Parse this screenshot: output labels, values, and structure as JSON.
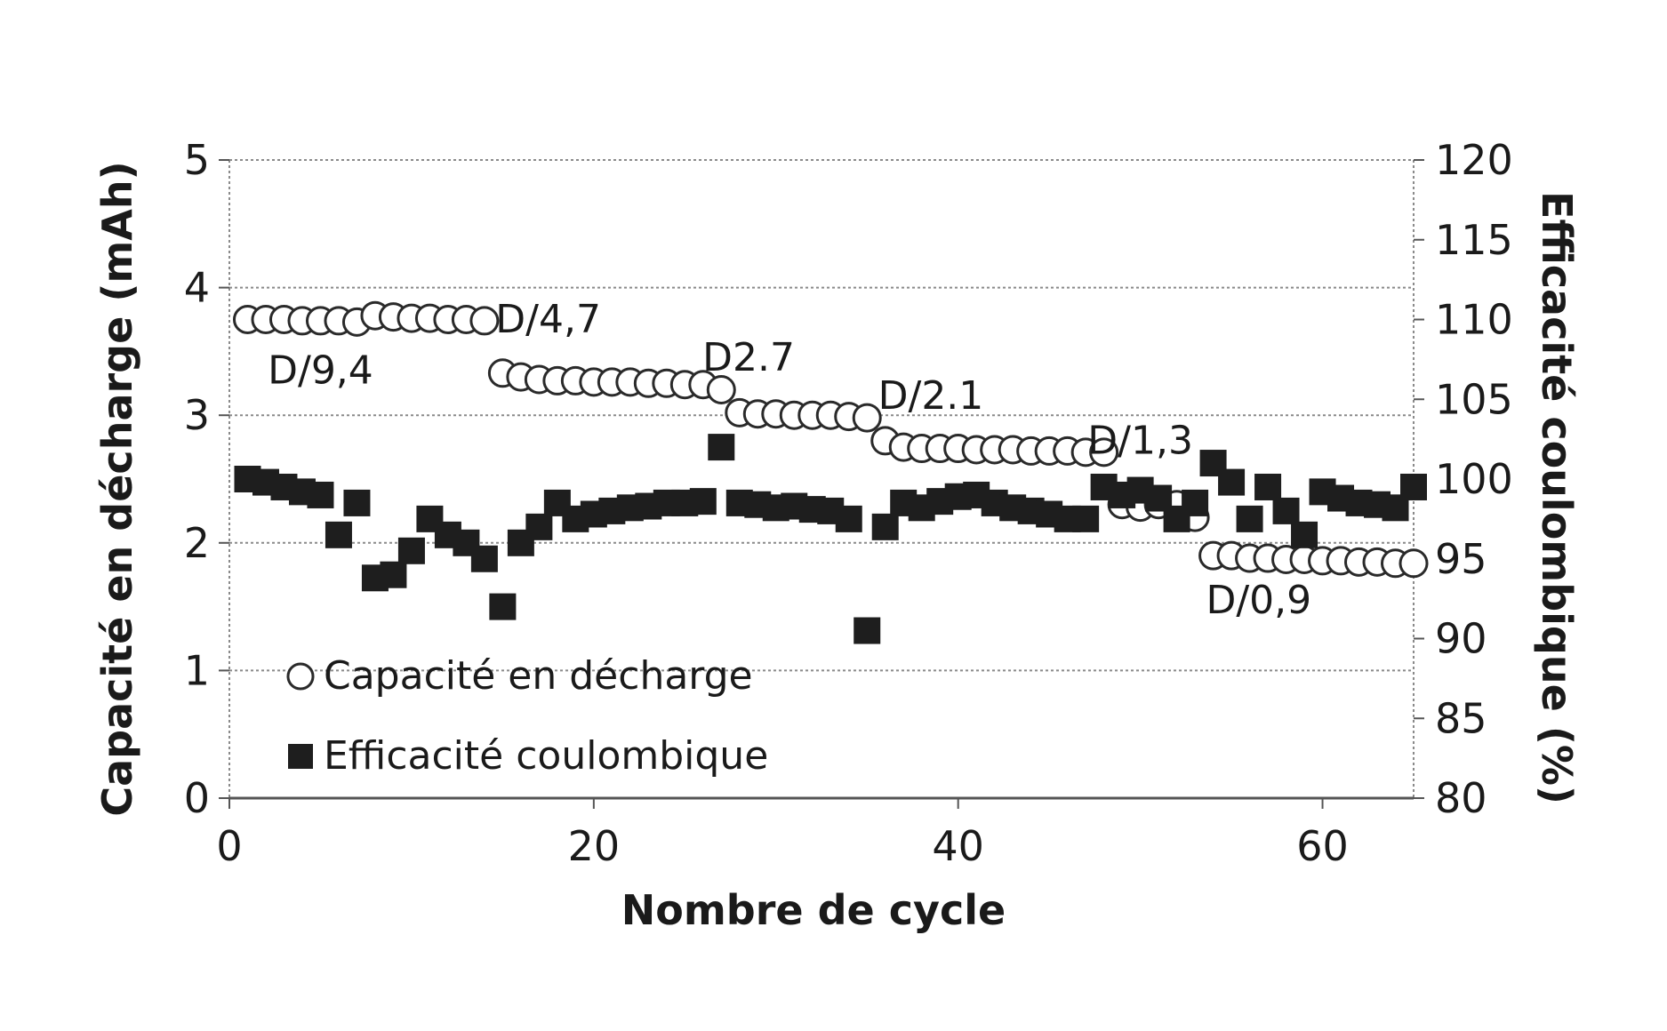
{
  "chart_data": {
    "type": "scatter",
    "title": "",
    "xlabel": "Nombre de cycle",
    "ylabel_left": "Capacité en décharge (mAh)",
    "ylabel_right": "Efficacité coulombique (%)",
    "xlim": [
      0,
      65
    ],
    "ylim_left": [
      0,
      5
    ],
    "ylim_right": [
      80,
      120
    ],
    "x_ticks": [
      "0",
      "20",
      "40",
      "60"
    ],
    "y_left_ticks": [
      "0",
      "1",
      "2",
      "3",
      "4",
      "5"
    ],
    "y_right_ticks": [
      "80",
      "85",
      "90",
      "95",
      "100",
      "105",
      "110",
      "115",
      "120"
    ],
    "grid": true,
    "legend": {
      "position": "bottom-left",
      "entries": [
        {
          "marker": "open-circle",
          "label": "Capacité en décharge"
        },
        {
          "marker": "filled-square",
          "label": "Efficacité coulombique"
        }
      ]
    },
    "series": [
      {
        "name": "Capacité en décharge",
        "axis": "left",
        "marker": "open-circle",
        "x": [
          1,
          2,
          3,
          4,
          5,
          6,
          7,
          8,
          9,
          10,
          11,
          12,
          13,
          14,
          15,
          16,
          17,
          18,
          19,
          20,
          21,
          22,
          23,
          24,
          25,
          26,
          27,
          28,
          29,
          30,
          31,
          32,
          33,
          34,
          35,
          36,
          37,
          38,
          39,
          40,
          41,
          42,
          43,
          44,
          45,
          46,
          47,
          48,
          49,
          50,
          51,
          52,
          53,
          54,
          55,
          56,
          57,
          58,
          59,
          60,
          61,
          62,
          63,
          64,
          65
        ],
        "y": [
          3.75,
          3.75,
          3.75,
          3.74,
          3.74,
          3.74,
          3.73,
          3.78,
          3.77,
          3.76,
          3.76,
          3.75,
          3.75,
          3.74,
          3.33,
          3.3,
          3.28,
          3.27,
          3.27,
          3.26,
          3.26,
          3.26,
          3.25,
          3.25,
          3.24,
          3.24,
          3.2,
          3.02,
          3.01,
          3.01,
          3.0,
          3.0,
          3.0,
          2.99,
          2.98,
          2.8,
          2.75,
          2.74,
          2.74,
          2.74,
          2.73,
          2.73,
          2.73,
          2.72,
          2.72,
          2.72,
          2.71,
          2.71,
          2.3,
          2.28,
          2.3,
          2.3,
          2.2,
          1.9,
          1.9,
          1.88,
          1.88,
          1.87,
          1.87,
          1.86,
          1.86,
          1.85,
          1.85,
          1.84,
          1.84
        ]
      },
      {
        "name": "Efficacité coulombique",
        "axis": "right",
        "marker": "filled-square",
        "x": [
          1,
          2,
          3,
          4,
          5,
          6,
          7,
          8,
          9,
          10,
          11,
          12,
          13,
          14,
          15,
          16,
          17,
          18,
          19,
          20,
          21,
          22,
          23,
          24,
          25,
          26,
          27,
          28,
          29,
          30,
          31,
          32,
          33,
          34,
          35,
          36,
          37,
          38,
          39,
          40,
          41,
          42,
          43,
          44,
          45,
          46,
          47,
          48,
          49,
          50,
          51,
          52,
          53,
          54,
          55,
          56,
          57,
          58,
          59,
          60,
          61,
          62,
          63,
          64,
          65
        ],
        "y": [
          100,
          99.8,
          99.5,
          99.2,
          99,
          96.5,
          98.5,
          93.8,
          94,
          95.5,
          97.5,
          96.5,
          96,
          95,
          92,
          96,
          97,
          98.5,
          97.5,
          97.8,
          98,
          98.2,
          98.3,
          98.5,
          98.5,
          98.6,
          102,
          98.5,
          98.4,
          98.2,
          98.3,
          98.1,
          98,
          97.5,
          90.5,
          97,
          98.5,
          98.2,
          98.6,
          98.9,
          99,
          98.5,
          98.2,
          98,
          97.8,
          97.5,
          97.5,
          99.5,
          99,
          99.3,
          98.8,
          97.5,
          98.5,
          101,
          99.8,
          97.5,
          99.5,
          98,
          96.5,
          99.2,
          98.8,
          98.5,
          98.4,
          98.2,
          99.5
        ]
      }
    ],
    "annotations": [
      {
        "text": "D/9,4",
        "x": 5,
        "y": 3.25,
        "axis": "left"
      },
      {
        "text": "D/4,7",
        "x": 17.5,
        "y": 3.65,
        "axis": "left"
      },
      {
        "text": "D2.7",
        "x": 28.5,
        "y": 3.35,
        "axis": "left"
      },
      {
        "text": "D/2.1",
        "x": 38.5,
        "y": 3.05,
        "axis": "left"
      },
      {
        "text": "D/1,3",
        "x": 50,
        "y": 2.7,
        "axis": "left"
      },
      {
        "text": "D/0,9",
        "x": 56.5,
        "y": 1.45,
        "axis": "left"
      }
    ]
  }
}
